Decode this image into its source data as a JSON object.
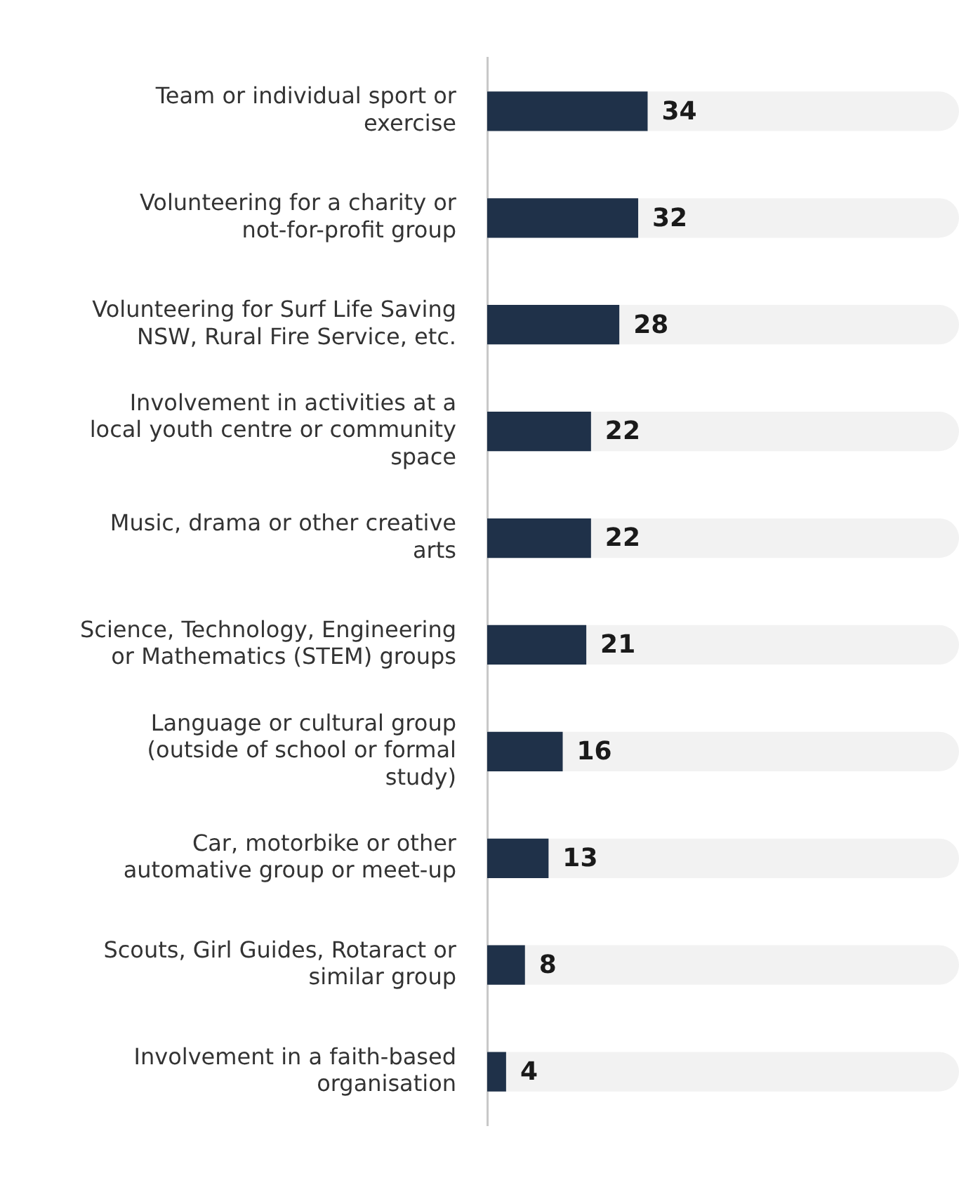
{
  "chart_data": {
    "type": "bar",
    "orientation": "horizontal",
    "categories": [
      "Team or individual sport or exercise",
      "Volunteering for a charity or not-for-profit group",
      "Volunteering for Surf Life Saving NSW, Rural Fire Service, etc.",
      "Involvement in activities at a local youth centre or community space",
      "Music, drama or other creative arts",
      "Science, Technology, Engineering or Mathematics (STEM) groups",
      "Language or cultural group (outside of school or formal study)",
      "Car, motorbike or other automative group or meet-up",
      "Scouts, Girl Guides, Rotaract or similar group",
      "Involvement in a faith-based organisation"
    ],
    "values": [
      34,
      32,
      28,
      22,
      22,
      21,
      16,
      13,
      8,
      4
    ],
    "color": "#1f3149",
    "xlim": [
      0,
      100
    ],
    "tick_labels": "y",
    "data_labels": true,
    "legend": false
  }
}
